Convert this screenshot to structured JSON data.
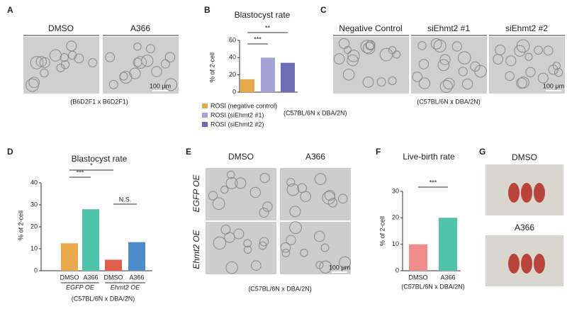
{
  "panels": {
    "A": {
      "label": "A",
      "columns": [
        "DMSO",
        "A366"
      ],
      "scale_bar": "100 μm",
      "note": "(B6D2F1 x B6D2F1)"
    },
    "C": {
      "label": "C",
      "columns": [
        "Negative Control",
        "siEhmt2 #1",
        "siEhmt2 #2"
      ],
      "scale_bar": "100 μm",
      "note": "(C57BL/6N x DBA/2N)"
    },
    "E": {
      "label": "E",
      "columns": [
        "DMSO",
        "A366"
      ],
      "rows": [
        "EGFP OE",
        "Ehmt2 OE"
      ],
      "scale_bar": "100 μm",
      "note": "(C57BL/6N x DBA/2N)"
    },
    "G": {
      "label": "G",
      "rows": [
        "DMSO",
        "A366"
      ]
    }
  },
  "chart_data": [
    {
      "type": "bar",
      "panel_label": "B",
      "title": "Blastocyst rate",
      "y_label": "% of 2-cell",
      "categories": [
        "ROSI (negative control)",
        "ROSI (siEhmt2 #1)",
        "ROSI (siEhmt2 #2)"
      ],
      "values": [
        15,
        40,
        34
      ],
      "colors": [
        "#e9a94b",
        "#a3a3d6",
        "#6d6db3"
      ],
      "ylim": [
        0,
        60
      ],
      "yticks": [
        0,
        20,
        40,
        60
      ],
      "significance": [
        "***",
        "**"
      ],
      "note": "(C57BL/6N x DBA/2N)"
    },
    {
      "type": "bar",
      "panel_label": "D",
      "title": "Blastocyst rate",
      "y_label": "% of 2-cell",
      "categories": [
        "DMSO",
        "A366",
        "DMSO",
        "A366"
      ],
      "groups": [
        "EGFP OE",
        "Ehmt2 OE"
      ],
      "values": [
        12.5,
        28,
        5,
        13
      ],
      "colors": [
        "#e9a94b",
        "#4fc2aa",
        "#e2604b",
        "#4b8dca"
      ],
      "ylim": [
        0,
        40
      ],
      "yticks": [
        0,
        10,
        20,
        30,
        40
      ],
      "significance": [
        "***",
        "*",
        "N.S."
      ],
      "note": "(C57BL/6N x DBA/2N)"
    },
    {
      "type": "bar",
      "panel_label": "F",
      "title": "Live-birth rate",
      "y_label": "% of 2-cell",
      "categories": [
        "DMSO",
        "A366"
      ],
      "values": [
        10,
        20
      ],
      "colors": [
        "#f08c8c",
        "#4fc2aa"
      ],
      "ylim": [
        0,
        30
      ],
      "yticks": [
        0,
        10,
        20,
        30
      ],
      "significance": [
        "***"
      ],
      "note": "(C57BL/6N x DBA/2N)"
    }
  ]
}
